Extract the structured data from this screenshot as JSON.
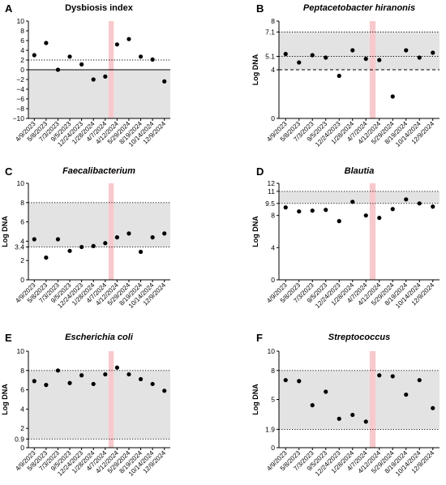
{
  "chart_data": [
    {
      "type": "scatter",
      "panel": "A",
      "title": "Dysbiosis index",
      "title_italic": false,
      "ylabel": "",
      "ylim": [
        -10,
        10
      ],
      "yticks": [
        -10,
        -8,
        -6,
        -4,
        -2,
        0,
        2,
        4,
        6,
        8,
        10
      ],
      "ytick_labels": [
        "−10",
        "−8",
        "−6",
        "−4",
        "−2",
        "0",
        "2",
        "4",
        "6",
        "8",
        "10"
      ],
      "shaded_range": [
        -10,
        0
      ],
      "ref_lines": [
        {
          "y": 2,
          "style": "dotted"
        },
        {
          "y": 0,
          "style": "solid"
        }
      ],
      "highlight_between": [
        6,
        7
      ],
      "x": [
        "4/9/2023",
        "5/8/2023",
        "7/3/2023",
        "9/5/2023",
        "12/24/2023",
        "1/28/2024",
        "4/7/2024",
        "4/12/2024",
        "5/29/2024",
        "8/19/2024",
        "10/14/2024",
        "12/9/2024"
      ],
      "values": [
        3.0,
        5.5,
        0.0,
        2.7,
        1.1,
        -2.0,
        -1.4,
        5.2,
        6.3,
        2.7,
        2.1,
        -2.4
      ]
    },
    {
      "type": "scatter",
      "panel": "B",
      "title": "Peptacetobacter hiranonis",
      "title_italic": true,
      "ylabel": "Log DNA",
      "ylim": [
        0,
        8
      ],
      "yticks": [
        0,
        4,
        5.1,
        7.1,
        8
      ],
      "ytick_labels": [
        "0",
        "4",
        "5.1",
        "7.1",
        "8"
      ],
      "shaded_range": [
        4,
        7.1
      ],
      "ref_lines": [
        {
          "y": 7.1,
          "style": "dotted"
        },
        {
          "y": 5.1,
          "style": "dotted"
        },
        {
          "y": 4,
          "style": "dashed"
        }
      ],
      "highlight_between": [
        6,
        7
      ],
      "x": [
        "4/9/2023",
        "5/8/2023",
        "7/3/2023",
        "9/5/2023",
        "12/24/2023",
        "1/28/2024",
        "4/7/2024",
        "4/12/2024",
        "5/29/2024",
        "8/19/2024",
        "10/14/2024",
        "12/9/2024"
      ],
      "values": [
        5.3,
        4.6,
        5.2,
        5.0,
        3.5,
        5.6,
        4.9,
        4.8,
        1.8,
        5.6,
        5.0,
        5.4
      ]
    },
    {
      "type": "scatter",
      "panel": "C",
      "title": "Faecalibacterium",
      "title_italic": true,
      "ylabel": "Log DNA",
      "ylim": [
        0,
        10
      ],
      "yticks": [
        0,
        2,
        3.4,
        4,
        6,
        8,
        10
      ],
      "ytick_labels": [
        "0",
        "2",
        "3.4",
        "4",
        "6",
        "8",
        "10"
      ],
      "shaded_range": [
        3.4,
        8
      ],
      "ref_lines": [
        {
          "y": 8,
          "style": "dotted"
        },
        {
          "y": 3.4,
          "style": "dotted"
        }
      ],
      "highlight_between": [
        6,
        7
      ],
      "x": [
        "4/9/2023",
        "5/8/2023",
        "7/3/2023",
        "9/5/2023",
        "12/24/2023",
        "1/28/2024",
        "4/7/2024",
        "4/12/2024",
        "5/29/2024",
        "8/19/2024",
        "10/14/2024",
        "12/9/2024"
      ],
      "values": [
        4.2,
        2.3,
        4.2,
        3.0,
        3.4,
        3.5,
        3.8,
        4.4,
        4.8,
        2.9,
        4.4,
        4.8
      ]
    },
    {
      "type": "scatter",
      "panel": "D",
      "title": "Blautia",
      "title_italic": true,
      "ylabel": "Log DNA",
      "ylim": [
        0,
        12
      ],
      "yticks": [
        0,
        4,
        8,
        9.5,
        11,
        12
      ],
      "ytick_labels": [
        "0",
        "4",
        "8",
        "9.5",
        "11",
        "12"
      ],
      "shaded_range": [
        9.5,
        11
      ],
      "ref_lines": [
        {
          "y": 11,
          "style": "dotted"
        },
        {
          "y": 9.5,
          "style": "dotted"
        }
      ],
      "highlight_between": [
        6,
        7
      ],
      "x": [
        "4/9/2023",
        "5/8/2023",
        "7/3/2023",
        "9/5/2023",
        "12/24/2023",
        "1/28/2024",
        "4/7/2024",
        "4/12/2024",
        "5/29/2024",
        "8/19/2024",
        "10/14/2024",
        "12/9/2024"
      ],
      "values": [
        9.0,
        8.5,
        8.6,
        8.7,
        7.3,
        9.7,
        8.0,
        7.7,
        8.8,
        10.0,
        9.5,
        9.1
      ]
    },
    {
      "type": "scatter",
      "panel": "E",
      "title": "Escherichia coli",
      "title_italic": true,
      "ylabel": "Log DNA",
      "ylim": [
        0,
        10
      ],
      "yticks": [
        0,
        0.9,
        2,
        4,
        6,
        8,
        10
      ],
      "ytick_labels": [
        "0",
        "0.9",
        "2",
        "4",
        "6",
        "8",
        "10"
      ],
      "shaded_range": [
        0.9,
        8
      ],
      "ref_lines": [
        {
          "y": 8,
          "style": "dotted"
        },
        {
          "y": 0.9,
          "style": "dotted"
        }
      ],
      "highlight_between": [
        6,
        7
      ],
      "x": [
        "4/9/2023",
        "5/8/2023",
        "7/3/2023",
        "9/5/2023",
        "12/24/2023",
        "1/28/2024",
        "4/7/2024",
        "4/12/2024",
        "5/29/2024",
        "8/19/2024",
        "10/14/2024",
        "12/9/2024"
      ],
      "values": [
        6.9,
        6.5,
        8.0,
        6.7,
        7.5,
        6.6,
        7.6,
        8.3,
        7.6,
        7.1,
        6.6,
        5.9
      ]
    },
    {
      "type": "scatter",
      "panel": "F",
      "title": "Streptococcus",
      "title_italic": true,
      "ylabel": "Log DNA",
      "ylim": [
        0,
        10
      ],
      "yticks": [
        0,
        1.9,
        5,
        8,
        10
      ],
      "ytick_labels": [
        "0",
        "1.9",
        "5",
        "8",
        "10"
      ],
      "shaded_range": [
        1.9,
        8
      ],
      "ref_lines": [
        {
          "y": 8,
          "style": "dotted"
        },
        {
          "y": 1.9,
          "style": "dotted"
        }
      ],
      "highlight_between": [
        6,
        7
      ],
      "x": [
        "4/9/2023",
        "5/8/2023",
        "7/3/2023",
        "9/5/2023",
        "12/24/2023",
        "1/28/2024",
        "4/7/2024",
        "4/12/2024",
        "5/29/2024",
        "8/19/2024",
        "10/14/2024",
        "12/9/2024"
      ],
      "values": [
        7.0,
        6.9,
        4.4,
        5.8,
        3.0,
        3.4,
        2.7,
        7.5,
        7.4,
        5.5,
        7.0,
        4.1
      ]
    }
  ],
  "colors": {
    "shade": "#e3e3e3",
    "highlight": "#f8c9cc",
    "point": "#000000",
    "axis": "#000000"
  }
}
